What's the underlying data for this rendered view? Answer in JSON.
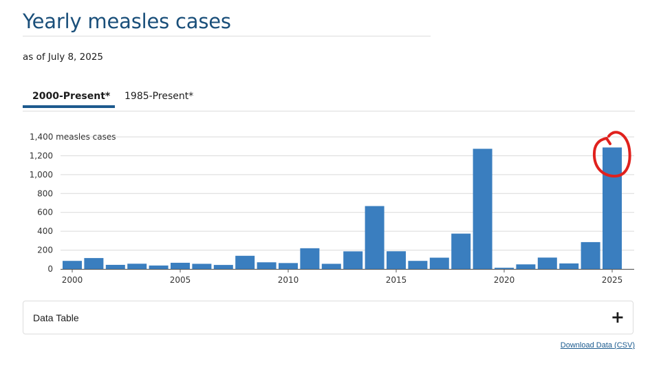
{
  "page": {
    "title": "Yearly measles cases",
    "as_of": "as of July 8, 2025"
  },
  "tabs": [
    {
      "label": "2000-Present*",
      "active": true
    },
    {
      "label": "1985-Present*",
      "active": false
    }
  ],
  "accordion": {
    "label": "Data Table",
    "expand_icon": "plus-icon",
    "expand_glyph": "+"
  },
  "download": {
    "label": "Download Data (CSV)"
  },
  "colors": {
    "bar": "#3a7ebf",
    "title": "#1a4f7a",
    "tab_underline": "#1d5a8e",
    "annotation": "#e0211d"
  },
  "chart_data": {
    "type": "bar",
    "title": "",
    "xlabel": "",
    "ylabel": "measles cases",
    "y_top_tick_label": "1,400 measles cases",
    "ylim": [
      0,
      1400
    ],
    "yticks": [
      0,
      200,
      400,
      600,
      800,
      1000,
      1200,
      1400
    ],
    "ytick_labels": [
      "0",
      "200",
      "400",
      "600",
      "800",
      "1,000",
      "1,200",
      "1,400 measles cases"
    ],
    "xticks": [
      "2000",
      "2005",
      "2010",
      "2015",
      "2020",
      "2025"
    ],
    "grid": true,
    "categories": [
      2000,
      2001,
      2002,
      2003,
      2004,
      2005,
      2006,
      2007,
      2008,
      2009,
      2010,
      2011,
      2012,
      2013,
      2014,
      2015,
      2016,
      2017,
      2018,
      2019,
      2020,
      2021,
      2022,
      2023,
      2024,
      2025
    ],
    "values": [
      86,
      116,
      44,
      56,
      37,
      66,
      55,
      43,
      140,
      71,
      63,
      220,
      55,
      187,
      667,
      188,
      86,
      120,
      375,
      1274,
      13,
      49,
      121,
      59,
      285,
      1288
    ],
    "annotation": "red hand-drawn circle around 2025 bar"
  }
}
